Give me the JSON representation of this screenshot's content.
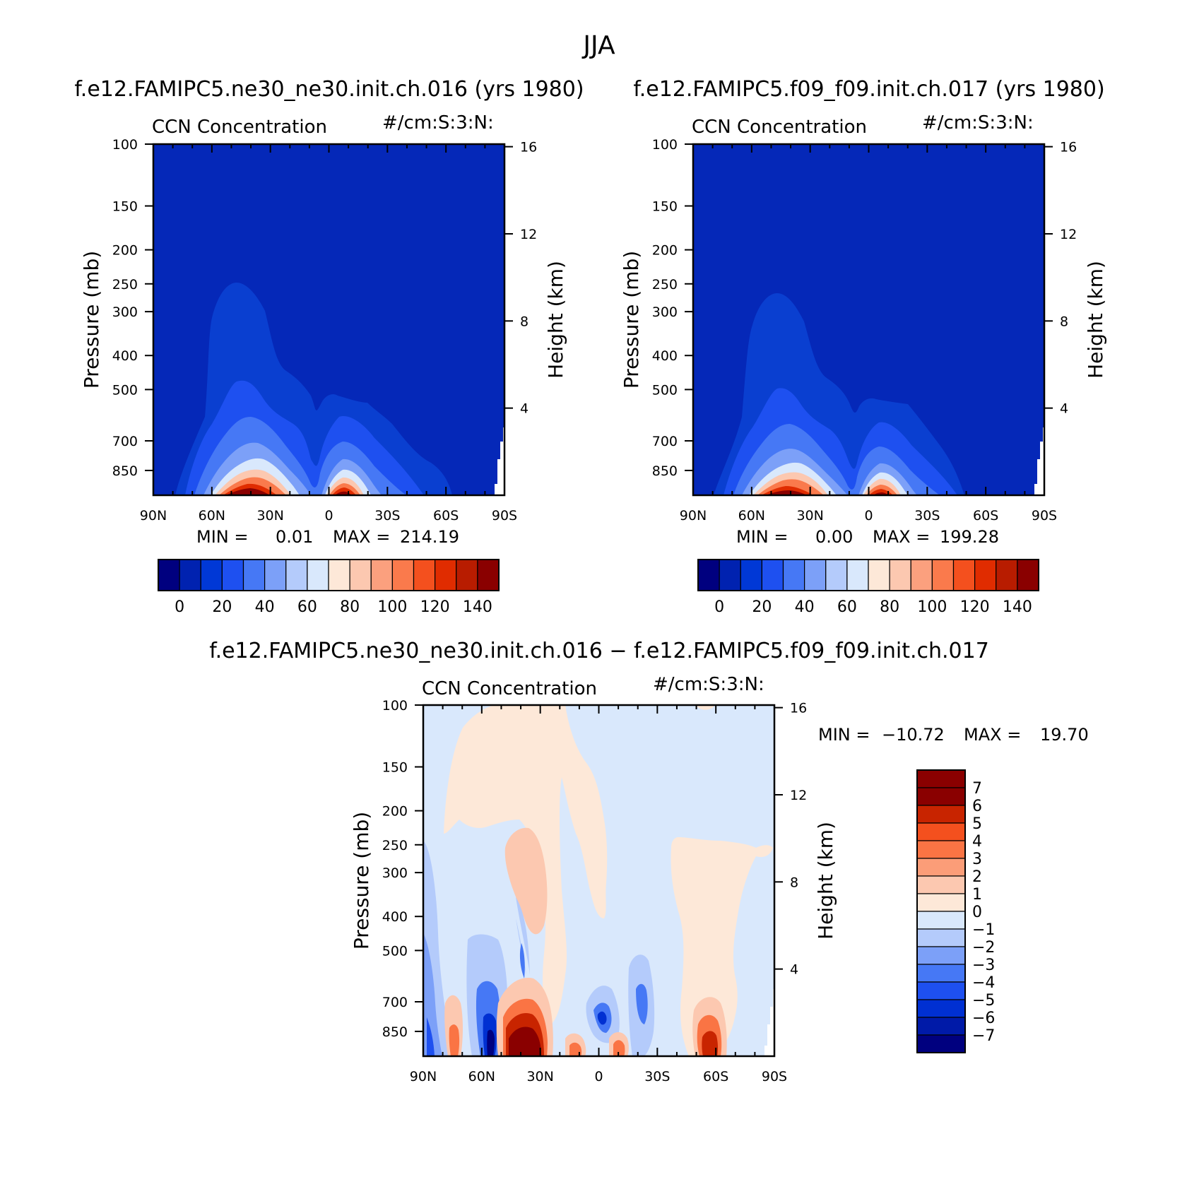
{
  "figure": {
    "title": "JJA"
  },
  "colors": {
    "main_scale": [
      "#00007f",
      "#0022b0",
      "#0038d6",
      "#1e50f0",
      "#4678f5",
      "#7ca0f8",
      "#b4cbfb",
      "#d9e8fc",
      "#fde8d8",
      "#fcc8b0",
      "#fba07e",
      "#fa7a4c",
      "#f4501e",
      "#e02c00",
      "#b81c00",
      "#8a0000"
    ],
    "diff_scale": [
      "#00007f",
      "#001aa8",
      "#0030d2",
      "#1e50f0",
      "#4678f5",
      "#7ca0f8",
      "#b4cbfb",
      "#d9e8fc",
      "#fde8d8",
      "#fcc8b0",
      "#fb9d78",
      "#fa7444",
      "#f4501e",
      "#c82400",
      "#8a0000"
    ],
    "bg_main": "#0528b8",
    "bg_diff": "#d9e8fc"
  },
  "chart_data": [
    {
      "type": "heatmap",
      "title": "f.e12.FAMIPC5.ne30_ne30.init.ch.016 (yrs 1980)",
      "subtitle_left": "CCN Concentration",
      "subtitle_right": "#/cm:S:3:N:",
      "ylabel": "Pressure (mb)",
      "y2label": "Height (km)",
      "x_ticks": [
        "90N",
        "60N",
        "30N",
        "0",
        "30S",
        "60S",
        "90S"
      ],
      "y_ticks": [
        100,
        150,
        200,
        250,
        300,
        400,
        500,
        700,
        850
      ],
      "y_tick_labels": [
        "100",
        "150",
        "200",
        "250",
        "300",
        "400",
        "500",
        "700",
        "850"
      ],
      "y2_ticks": [
        16,
        12,
        8,
        4
      ],
      "y2_tick_labels": [
        "16",
        "12",
        "8",
        "4"
      ],
      "xlim": [
        90,
        -90
      ],
      "ylim": [
        100,
        1000
      ],
      "min_label": "MIN =",
      "min_value": "0.01",
      "max_label": "MAX =",
      "max_value": "214.19",
      "colorbar_labels": [
        "0",
        "20",
        "40",
        "60",
        "80",
        "100",
        "120",
        "140"
      ],
      "colorbar_levels": [
        0,
        10,
        20,
        30,
        40,
        50,
        60,
        70,
        80,
        90,
        100,
        110,
        120,
        130,
        140
      ],
      "features": [
        {
          "lat": 38,
          "p": 960,
          "peak": 214
        },
        {
          "lat": -8,
          "p": 960,
          "peak": 180
        }
      ]
    },
    {
      "type": "heatmap",
      "title": "f.e12.FAMIPC5.f09_f09.init.ch.017 (yrs 1980)",
      "subtitle_left": "CCN Concentration",
      "subtitle_right": "#/cm:S:3:N:",
      "ylabel": "Pressure (mb)",
      "y2label": "Height (km)",
      "x_ticks": [
        "90N",
        "60N",
        "30N",
        "0",
        "30S",
        "60S",
        "90S"
      ],
      "y_ticks": [
        100,
        150,
        200,
        250,
        300,
        400,
        500,
        700,
        850
      ],
      "y_tick_labels": [
        "100",
        "150",
        "200",
        "250",
        "300",
        "400",
        "500",
        "700",
        "850"
      ],
      "y2_ticks": [
        16,
        12,
        8,
        4
      ],
      "y2_tick_labels": [
        "16",
        "12",
        "8",
        "4"
      ],
      "xlim": [
        90,
        -90
      ],
      "ylim": [
        100,
        1000
      ],
      "min_label": "MIN =",
      "min_value": "0.00",
      "max_label": "MAX =",
      "max_value": "199.28",
      "colorbar_labels": [
        "0",
        "20",
        "40",
        "60",
        "80",
        "100",
        "120",
        "140"
      ],
      "colorbar_levels": [
        0,
        10,
        20,
        30,
        40,
        50,
        60,
        70,
        80,
        90,
        100,
        110,
        120,
        130,
        140
      ],
      "features": [
        {
          "lat": 38,
          "p": 960,
          "peak": 199
        },
        {
          "lat": -8,
          "p": 960,
          "peak": 170
        }
      ]
    },
    {
      "type": "heatmap",
      "title": "f.e12.FAMIPC5.ne30_ne30.init.ch.016 − f.e12.FAMIPC5.f09_f09.init.ch.017",
      "subtitle_left": "CCN Concentration",
      "subtitle_right": "#/cm:S:3:N:",
      "ylabel": "Pressure (mb)",
      "y2label": "Height (km)",
      "x_ticks": [
        "90N",
        "60N",
        "30N",
        "0",
        "30S",
        "60S",
        "90S"
      ],
      "y_ticks": [
        100,
        150,
        200,
        250,
        300,
        400,
        500,
        700,
        850
      ],
      "y_tick_labels": [
        "100",
        "150",
        "200",
        "250",
        "300",
        "400",
        "500",
        "700",
        "850"
      ],
      "y2_ticks": [
        16,
        12,
        8,
        4
      ],
      "y2_tick_labels": [
        "16",
        "12",
        "8",
        "4"
      ],
      "xlim": [
        90,
        -90
      ],
      "ylim": [
        100,
        1000
      ],
      "min_label": "MIN =",
      "min_value": "−10.72",
      "max_label": "MAX =",
      "max_value": "19.70",
      "colorbar_labels": [
        "7",
        "6",
        "5",
        "4",
        "3",
        "2",
        "1",
        "0",
        "−1",
        "−2",
        "−3",
        "−4",
        "−5",
        "−6",
        "−7"
      ],
      "colorbar_levels": [
        7,
        6,
        5,
        4,
        3,
        2,
        1,
        0,
        -1,
        -2,
        -3,
        -4,
        -5,
        -6,
        -7
      ]
    }
  ]
}
